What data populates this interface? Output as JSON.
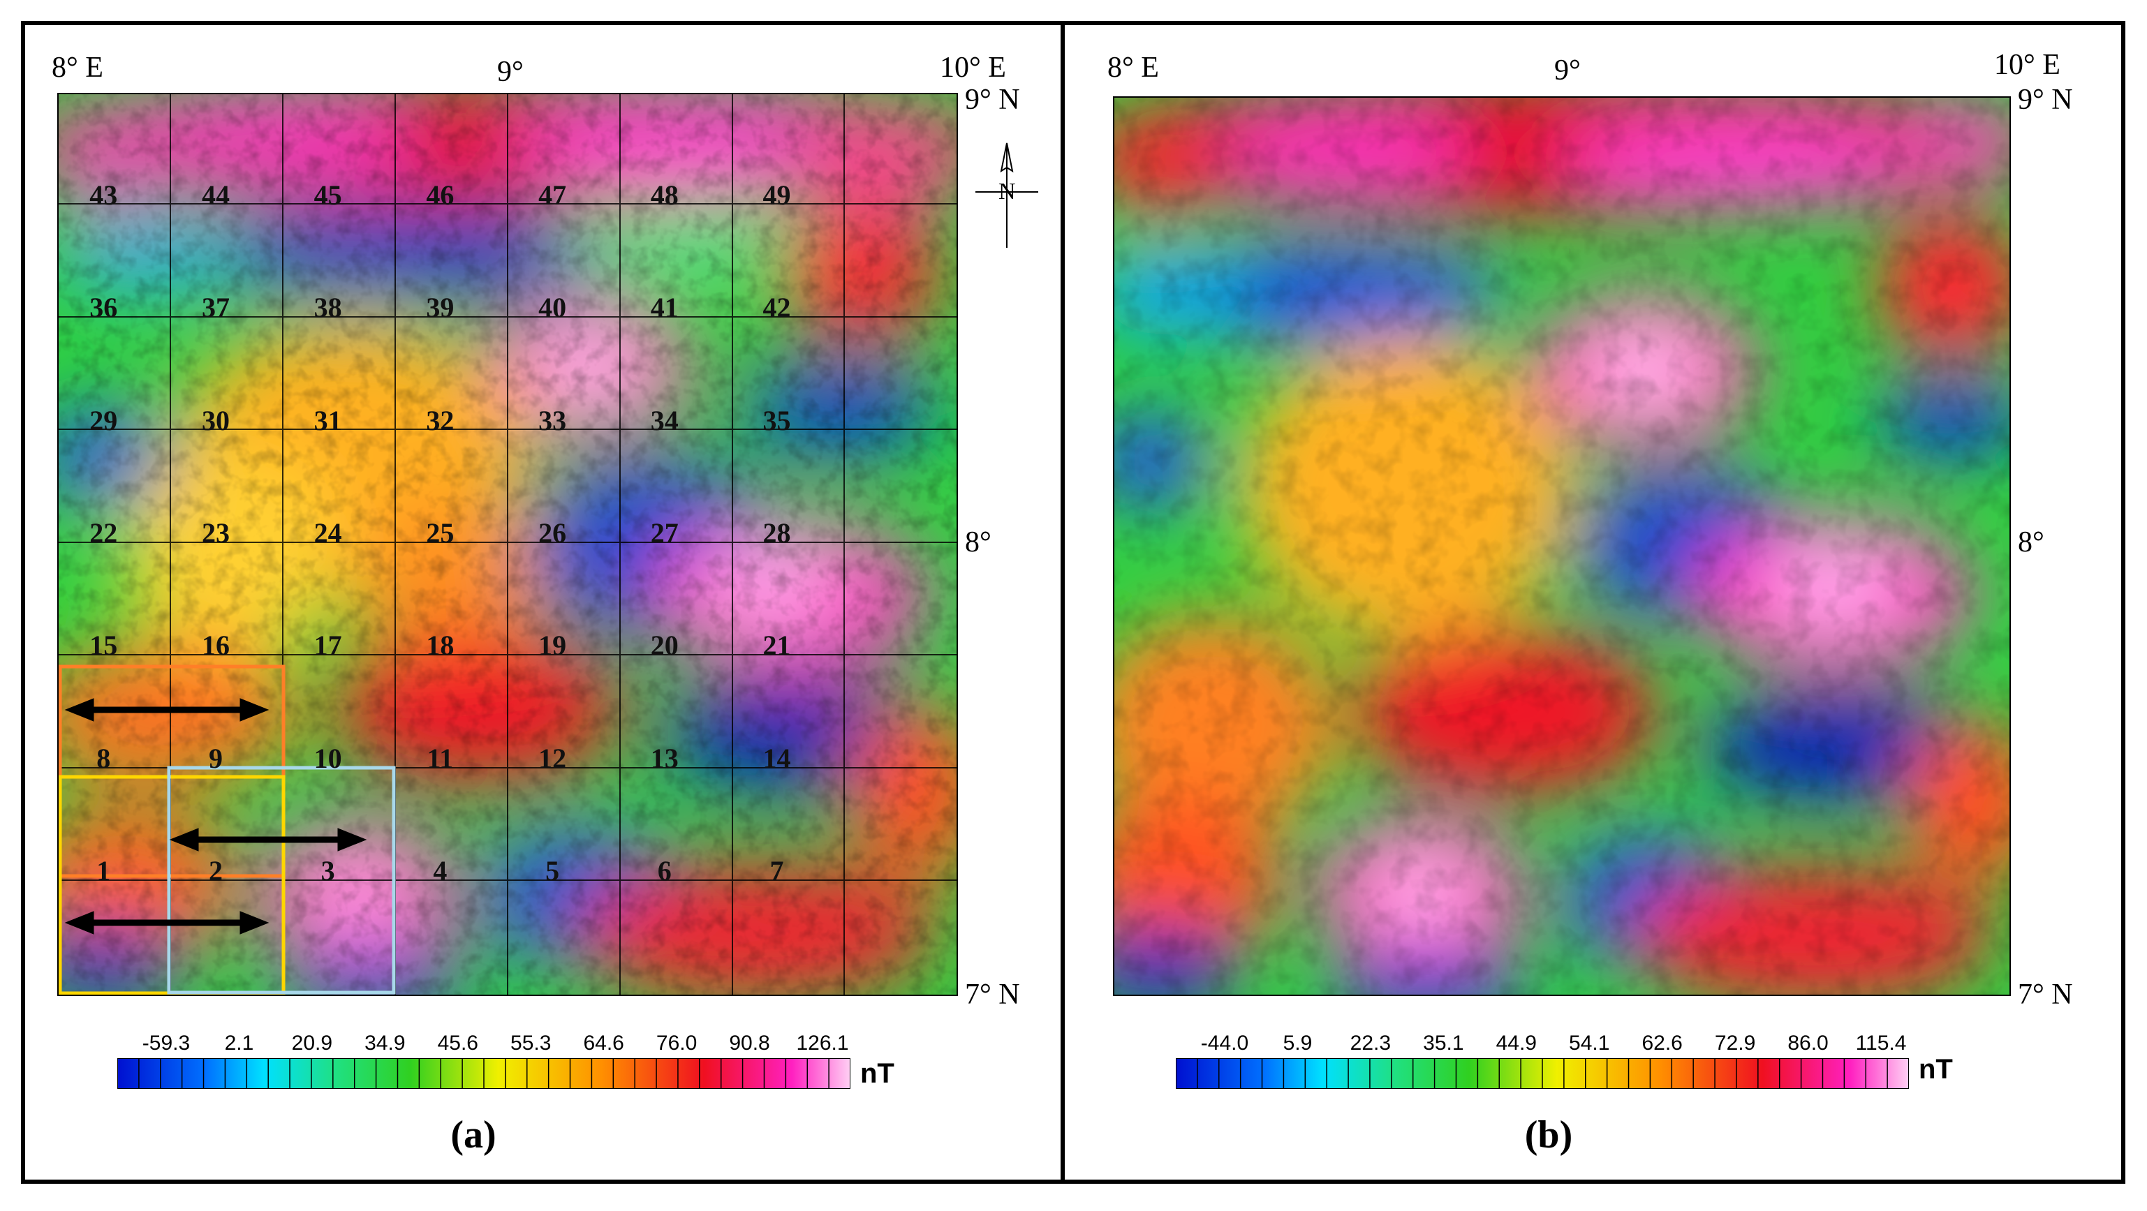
{
  "panel_a": {
    "label": "(a)",
    "lon_labels": [
      "8° E",
      "9°",
      "10° E"
    ],
    "lat_labels": [
      "9° N",
      "8°",
      "7° N"
    ],
    "cells": [
      [
        "43",
        "44",
        "45",
        "46",
        "47",
        "48",
        "49"
      ],
      [
        "36",
        "37",
        "38",
        "39",
        "40",
        "41",
        "42"
      ],
      [
        "29",
        "30",
        "31",
        "32",
        "33",
        "34",
        "35"
      ],
      [
        "22",
        "23",
        "24",
        "25",
        "26",
        "27",
        "28"
      ],
      [
        "15",
        "16",
        "17",
        "18",
        "19",
        "20",
        "21"
      ],
      [
        "8",
        "9",
        "10",
        "11",
        "12",
        "13",
        "14"
      ],
      [
        "1",
        "2",
        "3",
        "4",
        "5",
        "6",
        "7"
      ]
    ],
    "colorbar": {
      "ticks": [
        "-59.3",
        "2.1",
        "20.9",
        "34.9",
        "45.6",
        "55.3",
        "64.6",
        "76.0",
        "90.8",
        "126.1"
      ],
      "unit": "nT"
    },
    "north_arrow_label": "N"
  },
  "panel_b": {
    "label": "(b)",
    "lon_labels": [
      "8° E",
      "9°",
      "10° E"
    ],
    "lat_labels": [
      "9° N",
      "8°",
      "7° N"
    ],
    "colorbar": {
      "ticks": [
        "-44.0",
        "5.9",
        "22.3",
        "35.1",
        "44.9",
        "54.1",
        "62.6",
        "72.9",
        "86.0",
        "115.4"
      ],
      "unit": "nT"
    }
  },
  "colors": {
    "low": "#1010c0",
    "cyan": "#00e0ff",
    "green": "#20d020",
    "yellow": "#f0f000",
    "orange": "#ff9000",
    "red": "#e81020",
    "magenta": "#ff20c0",
    "high": "#ffc0f0",
    "box_orange": "#ff7f27",
    "box_yellow": "#ffd700",
    "box_lightblue": "#a8d8ea"
  }
}
